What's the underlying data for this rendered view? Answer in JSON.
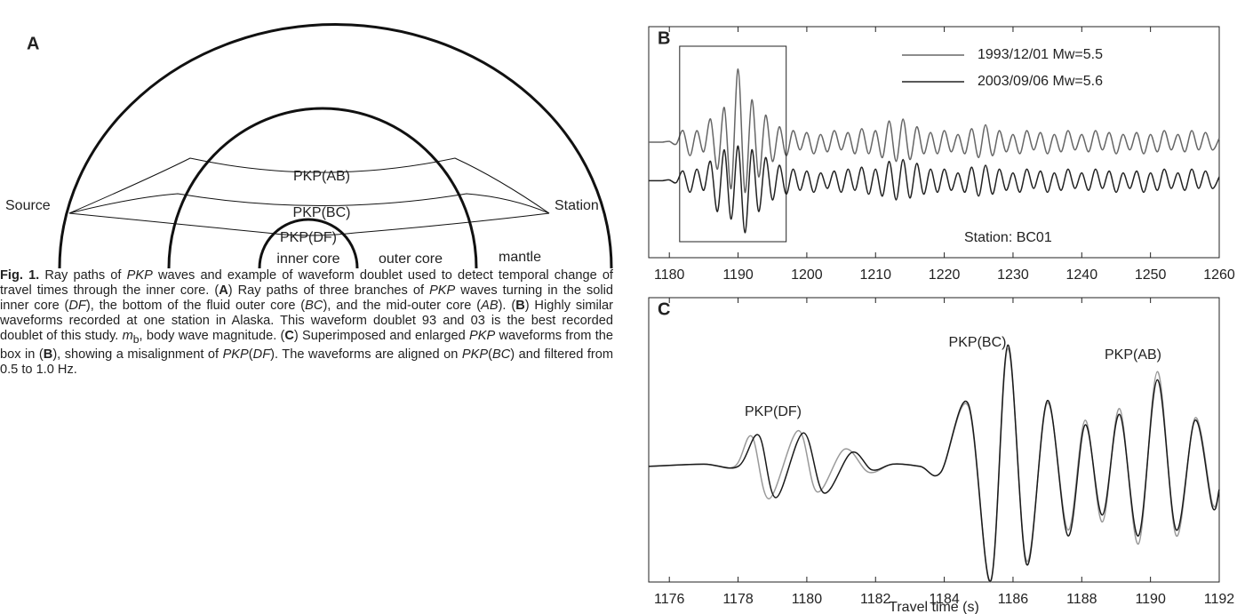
{
  "diagram": {
    "panel": "A",
    "rays": [
      "PKP(AB)",
      "PKP(BC)",
      "PKP(DF)"
    ],
    "source": "Source",
    "station": "Station",
    "regions": [
      "inner core",
      "outer core",
      "mantle"
    ]
  },
  "caption": {
    "runs": [
      "Fig. 1.",
      " Ray paths of ",
      "PKP",
      " waves and example of waveform doublet used to detect temporal change of travel times through the inner core. (",
      "A",
      ") Ray paths of three branches of ",
      "PKP",
      " waves turning in the solid inner core (",
      "DF",
      "), the bottom of the fluid outer core (",
      "BC",
      "), and the mid-outer core (",
      "AB",
      "). (",
      "B",
      ") Highly similar waveforms recorded at one station in Alaska. This waveform doublet 93 and 03 is the best recorded doublet of this study. ",
      "m",
      "b",
      ", body wave magnitude. (",
      "C",
      ") Superimposed and enlarged ",
      "PKP",
      " waveforms from the box in (",
      "B",
      "), showing a misalignment of ",
      "PKP",
      "(",
      "DF",
      "). The waveforms are aligned on ",
      "PKP",
      "(",
      "BC",
      ") and filtered from 0.5 to 1.0 Hz."
    ]
  },
  "chart_data": [
    {
      "type": "line",
      "panel": "B",
      "annotations": [
        "Station: BC01"
      ],
      "x": [
        1177,
        1178,
        1179,
        1180,
        1181,
        1182,
        1183,
        1184,
        1185,
        1186,
        1187,
        1188,
        1189,
        1190,
        1191,
        1192,
        1193,
        1194,
        1195,
        1196,
        1197,
        1198,
        1199,
        1200,
        1201,
        1202,
        1203,
        1204,
        1205,
        1206,
        1207,
        1208,
        1209,
        1210,
        1211,
        1212,
        1213,
        1214,
        1215,
        1216,
        1217,
        1218,
        1219,
        1220,
        1221,
        1222,
        1223,
        1224,
        1225,
        1226,
        1227,
        1228,
        1229,
        1230,
        1231,
        1232,
        1233,
        1234,
        1235,
        1236,
        1237,
        1238,
        1239,
        1240,
        1241,
        1242,
        1243,
        1244,
        1245,
        1246,
        1247,
        1248,
        1249,
        1250,
        1251,
        1252,
        1253,
        1254,
        1255,
        1256,
        1257,
        1258,
        1259,
        1260
      ],
      "series": [
        {
          "name": "1993/12/01 Mw=5.5",
          "color": "#666666",
          "values": [
            0,
            0,
            0,
            0.02,
            -0.05,
            0.3,
            -0.35,
            0.3,
            -0.25,
            0.6,
            -0.7,
            0.9,
            -1.2,
            1.9,
            -1.3,
            1.1,
            -0.9,
            0.7,
            -0.5,
            0.4,
            -0.35,
            0.3,
            -0.2,
            0.25,
            -0.3,
            0.2,
            -0.25,
            0.3,
            -0.2,
            0.25,
            -0.3,
            0.35,
            -0.3,
            0.3,
            -0.4,
            0.55,
            -0.5,
            0.6,
            -0.45,
            0.4,
            -0.3,
            0.25,
            -0.3,
            0.3,
            -0.25,
            0.2,
            -0.3,
            0.35,
            -0.4,
            0.45,
            -0.35,
            0.3,
            -0.25,
            0.2,
            -0.3,
            0.3,
            -0.2,
            0.25,
            -0.3,
            0.2,
            -0.25,
            0.3,
            -0.2,
            0.2,
            -0.25,
            0.3,
            -0.2,
            0.25,
            -0.3,
            0.2,
            -0.2,
            0.25,
            -0.3,
            0.2,
            -0.25,
            0.3,
            -0.2,
            0.2,
            -0.25,
            0.3,
            -0.2,
            0.25,
            -0.2,
            0.1
          ]
        },
        {
          "name": "2003/09/06 Mw=5.6",
          "color": "#222222",
          "values": [
            -1,
            -1,
            -1,
            -0.98,
            -1.05,
            -0.75,
            -1.3,
            -0.7,
            -1.25,
            -0.5,
            -1.8,
            -0.2,
            -2.0,
            -0.1,
            -2.35,
            -0.2,
            -1.8,
            -0.4,
            -1.5,
            -0.6,
            -1.35,
            -0.7,
            -1.25,
            -0.75,
            -1.3,
            -0.8,
            -1.2,
            -0.75,
            -1.3,
            -0.7,
            -1.25,
            -0.65,
            -1.35,
            -0.7,
            -1.4,
            -0.5,
            -1.5,
            -0.45,
            -1.45,
            -0.55,
            -1.35,
            -0.7,
            -1.3,
            -0.7,
            -1.25,
            -0.8,
            -1.3,
            -0.65,
            -1.4,
            -0.6,
            -1.35,
            -0.7,
            -1.25,
            -0.8,
            -1.3,
            -0.7,
            -1.2,
            -0.75,
            -1.3,
            -0.8,
            -1.25,
            -0.7,
            -1.2,
            -0.8,
            -1.25,
            -0.7,
            -1.2,
            -0.75,
            -1.3,
            -0.8,
            -1.2,
            -0.75,
            -1.3,
            -0.8,
            -1.25,
            -0.7,
            -1.2,
            -0.8,
            -1.25,
            -0.7,
            -1.2,
            -0.75,
            -1.2,
            -0.9
          ]
        }
      ],
      "box_x": [
        1181.5,
        1197
      ],
      "xlim": [
        1177,
        1260
      ],
      "ylim": [
        -3,
        3
      ],
      "xticks": [
        1180,
        1190,
        1200,
        1210,
        1220,
        1230,
        1240,
        1250,
        1260
      ]
    },
    {
      "type": "line",
      "panel": "C",
      "annotations": [
        "PKP(DF)",
        "PKP(BC)",
        "PKP(AB)"
      ],
      "xlabel": "Travel time (s)",
      "series": [
        {
          "color": "#999999",
          "x": [
            1175.4,
            1177,
            1177.9,
            1178.4,
            1178.9,
            1179.75,
            1180.3,
            1181.1,
            1181.8,
            1182.5,
            1183.3,
            1183.9,
            1184.7,
            1185.35,
            1185.85,
            1186.4,
            1187.0,
            1187.6,
            1188.1,
            1188.6,
            1189.1,
            1189.65,
            1190.2,
            1190.75,
            1191.3,
            1191.8,
            1192
          ],
          "values": [
            0,
            0.02,
            0,
            0.26,
            -0.28,
            0.31,
            -0.22,
            0.15,
            -0.05,
            0.02,
            0,
            -0.05,
            0.52,
            -1.0,
            1.02,
            -0.82,
            0.55,
            -0.55,
            0.4,
            -0.48,
            0.5,
            -0.67,
            0.82,
            -0.6,
            0.42,
            -0.32,
            -0.2
          ]
        },
        {
          "color": "#1a1a1a",
          "x": [
            1175.4,
            1177,
            1178,
            1178.6,
            1179.1,
            1179.9,
            1180.5,
            1181.3,
            1181.9,
            1182.5,
            1183.3,
            1183.9,
            1184.7,
            1185.35,
            1185.85,
            1186.4,
            1187.0,
            1187.6,
            1188.1,
            1188.6,
            1189.1,
            1189.65,
            1190.2,
            1190.75,
            1191.3,
            1191.8,
            1192
          ],
          "values": [
            0,
            0.02,
            0,
            0.27,
            -0.27,
            0.29,
            -0.23,
            0.12,
            -0.03,
            0.02,
            0,
            -0.05,
            0.54,
            -0.99,
            1.05,
            -0.85,
            0.57,
            -0.6,
            0.36,
            -0.42,
            0.45,
            -0.6,
            0.75,
            -0.55,
            0.4,
            -0.35,
            -0.2
          ]
        }
      ],
      "xlim": [
        1175.4,
        1192
      ],
      "ylim": [
        -1.0,
        1.46
      ],
      "xticks": [
        1176,
        1178,
        1180,
        1182,
        1184,
        1186,
        1188,
        1190,
        1192
      ]
    }
  ]
}
